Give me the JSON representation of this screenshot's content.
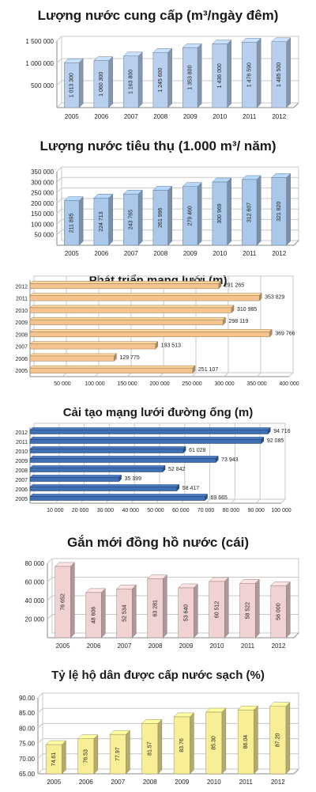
{
  "chart_data": [
    {
      "type": "bar",
      "title": "Lượng nước cung cấp (m³/ngày đêm)",
      "categories": [
        "2005",
        "2006",
        "2007",
        "2008",
        "2009",
        "2010",
        "2011",
        "2012"
      ],
      "values": [
        1013300,
        1060300,
        1163800,
        1245600,
        1353800,
        1436000,
        1476590,
        1485500
      ],
      "value_labels": [
        "1 013 300",
        "1 060 300",
        "1 163 800",
        "1 245 600",
        "1 353 800",
        "1 436 000",
        "1 476 590",
        "1 485 500"
      ],
      "y_ticks": [
        0,
        500000,
        1000000,
        1500000
      ],
      "y_tick_labels": [
        "",
        "500 000",
        "1 000 000",
        "1 500 000"
      ],
      "ylim": [
        0,
        1500000
      ],
      "color": "#b8d0ee",
      "grid": true
    },
    {
      "type": "bar",
      "title": "Lượng nước tiêu thụ (1.000 m³/ năm)",
      "categories": [
        "2005",
        "2006",
        "2007",
        "2008",
        "2009",
        "2010",
        "2011",
        "2012"
      ],
      "values": [
        211895,
        224713,
        243765,
        261996,
        279460,
        300969,
        312607,
        321820
      ],
      "value_labels": [
        "211 895",
        "224 713",
        "243 765",
        "261 996",
        "279 460",
        "300 969",
        "312 607",
        "321 820"
      ],
      "y_ticks": [
        50000,
        100000,
        150000,
        200000,
        250000,
        300000,
        350000
      ],
      "y_tick_labels": [
        "50 000",
        "100 000",
        "150 000",
        "200 000",
        "250 000",
        "300 000",
        "350 000"
      ],
      "ylim": [
        0,
        350000
      ],
      "color": "#a9c8ea",
      "grid": true
    },
    {
      "type": "bar",
      "orientation": "horizontal",
      "title": "Phát triển mạng lưới (m)",
      "categories": [
        "2012",
        "2011",
        "2010",
        "2009",
        "2008",
        "2007",
        "2006",
        "2005"
      ],
      "values": [
        291265,
        353829,
        310985,
        298119,
        369766,
        193513,
        129775,
        251107
      ],
      "value_labels": [
        "291 265",
        "353 829",
        "310 985",
        "298 119",
        "369 766",
        "193 513",
        "129 775",
        "251 107"
      ],
      "x_ticks": [
        50000,
        100000,
        150000,
        200000,
        250000,
        300000,
        350000,
        400000
      ],
      "x_tick_labels": [
        "50 000",
        "100 000",
        "150 000",
        "200 000",
        "250 000",
        "300 000",
        "350 000",
        "400 000"
      ],
      "xlim": [
        0,
        400000
      ],
      "color": "#f5c48e",
      "grid": true
    },
    {
      "type": "bar",
      "orientation": "horizontal",
      "title": "Cải tạo mạng lưới đường ống (m)",
      "categories": [
        "2012",
        "2011",
        "2010",
        "2009",
        "2008",
        "2007",
        "2006",
        "2005"
      ],
      "values": [
        94716,
        92085,
        61028,
        73943,
        52842,
        35399,
        58417,
        69665
      ],
      "value_labels": [
        "94 716",
        "92 085",
        "61 028",
        "73 943",
        "52 842",
        "35 399",
        "58 417",
        "69 665"
      ],
      "x_ticks": [
        10000,
        20000,
        30000,
        40000,
        50000,
        60000,
        70000,
        80000,
        90000,
        100000
      ],
      "x_tick_labels": [
        "10 000",
        "20 000",
        "30 000",
        "40 000",
        "50 000",
        "60 000",
        "70 000",
        "80 000",
        "90 000",
        "100 000"
      ],
      "xlim": [
        0,
        100000
      ],
      "color": "#3f6fb3",
      "grid": true
    },
    {
      "type": "bar",
      "title": "Gắn mới đồng hồ nước (cái)",
      "categories": [
        "2005",
        "2006",
        "2007",
        "2008",
        "2009",
        "2010",
        "2011",
        "2012"
      ],
      "values": [
        76652,
        48606,
        52534,
        63281,
        53640,
        60512,
        58522,
        56000
      ],
      "value_labels": [
        "76 652",
        "48 606",
        "52 534",
        "63 281",
        "53 640",
        "60 512",
        "58 522",
        "56 000"
      ],
      "y_ticks": [
        20000,
        40000,
        60000,
        80000
      ],
      "y_tick_labels": [
        "20 000",
        "40 000",
        "60 000",
        "80 000"
      ],
      "ylim": [
        0,
        80000
      ],
      "color": "#f0d2d2",
      "grid": true
    },
    {
      "type": "bar",
      "title": "Tỷ lệ hộ dân được cấp nước sạch (%)",
      "categories": [
        "2005",
        "2006",
        "2007",
        "2008",
        "2009",
        "2010",
        "2011",
        "2012"
      ],
      "values": [
        74.61,
        76.53,
        77.97,
        81.57,
        83.76,
        85.3,
        86.04,
        87.2
      ],
      "value_labels": [
        "74.61",
        "76.53",
        "77.97",
        "81.57",
        "83.76",
        "85.30",
        "86.04",
        "87.20"
      ],
      "y_ticks": [
        65,
        70,
        75,
        80,
        85,
        90
      ],
      "y_tick_labels": [
        "65.00",
        "70.00",
        "75.00",
        "80.00",
        "85.00",
        "90.00"
      ],
      "ylim": [
        65,
        90
      ],
      "color": "#f7ee96",
      "grid": true
    }
  ]
}
